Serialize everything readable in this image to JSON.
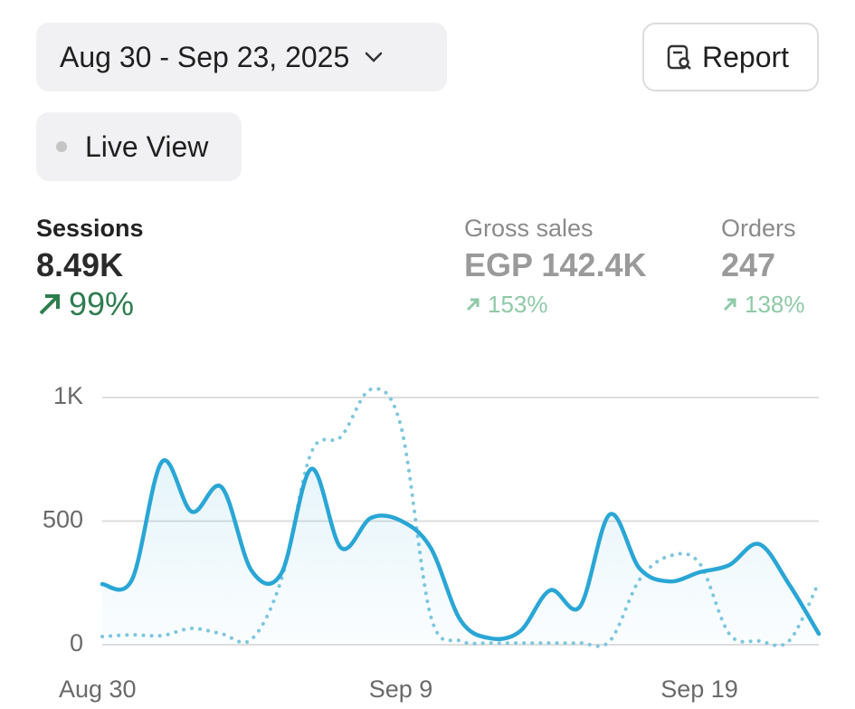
{
  "header": {
    "date_range": "Aug 30 - Sep 23, 2025",
    "report_button": "Report",
    "live_view": "Live View"
  },
  "metrics": [
    {
      "label": "Sessions",
      "value": "8.49K",
      "change": "99%"
    },
    {
      "label": "Gross sales",
      "value": "EGP 142.4K",
      "change": "153%"
    },
    {
      "label": "Orders",
      "value": "247",
      "change": "138%"
    }
  ],
  "chart_data": {
    "type": "line",
    "categories": [
      "Aug 30",
      null,
      null,
      null,
      null,
      null,
      null,
      null,
      null,
      null,
      "Sep 9",
      null,
      null,
      null,
      null,
      null,
      null,
      null,
      null,
      null,
      "Sep 19",
      null,
      null,
      null,
      null
    ],
    "series": [
      {
        "color": "#2aa6d5",
        "style": "solid",
        "values": [
          245,
          264,
          740,
          538,
          637,
          300,
          289,
          711,
          392,
          513,
          502,
          392,
          99,
          26,
          55,
          220,
          154,
          527,
          308,
          256,
          293,
          322,
          407,
          245,
          44
        ]
      },
      {
        "color": "#7fc7de",
        "style": "dotted",
        "values": [
          33,
          40,
          37,
          66,
          44,
          22,
          264,
          777,
          842,
          1033,
          886,
          117,
          15,
          7,
          7,
          7,
          7,
          15,
          264,
          359,
          330,
          44,
          15,
          15,
          253
        ]
      }
    ],
    "ylim": [
      0,
      1000
    ],
    "yticks": [
      0,
      500,
      {
        "value": 1000,
        "label": "1K"
      }
    ],
    "grid": true
  }
}
